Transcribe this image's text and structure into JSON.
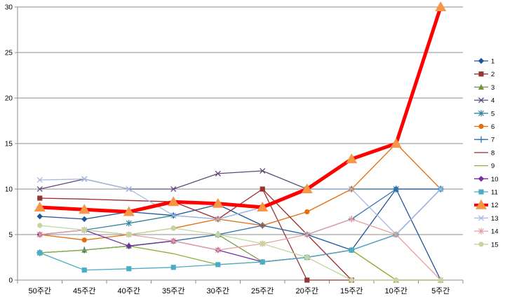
{
  "chart_data": {
    "type": "line",
    "categories": [
      "50주간",
      "45주간",
      "40주간",
      "35주간",
      "30주간",
      "25주간",
      "20주간",
      "15주간",
      "10주간",
      "5주간"
    ],
    "ylim": [
      0,
      30
    ],
    "yticks": [
      0,
      5,
      10,
      15,
      20,
      25,
      30
    ],
    "grid": true,
    "legend_position": "right",
    "series": [
      {
        "name": "1",
        "color": "#1F5597",
        "marker": "diamond",
        "width": 1.3,
        "values": [
          7,
          6.7,
          7.5,
          7.1,
          8.3,
          6,
          5,
          3.3,
          10,
          0
        ]
      },
      {
        "name": "2",
        "color": "#953735",
        "marker": "square",
        "width": 1.3,
        "values": [
          9,
          null,
          null,
          null,
          null,
          10,
          0,
          0,
          null,
          null
        ]
      },
      {
        "name": "3",
        "color": "#77933C",
        "marker": "triangle",
        "width": 1.3,
        "values": [
          3,
          3.3,
          3.75,
          4.3,
          5,
          2,
          2.5,
          3.3,
          0,
          0
        ]
      },
      {
        "name": "4",
        "color": "#5F497A",
        "marker": "x",
        "width": 1.3,
        "values": [
          10,
          11.1,
          10,
          10,
          11.7,
          12,
          10,
          10,
          10,
          10
        ]
      },
      {
        "name": "5",
        "color": "#31859C",
        "marker": "star",
        "width": 1.3,
        "values": [
          5,
          5.5,
          6.25,
          7.1,
          6.7,
          8,
          10,
          10,
          10,
          10
        ]
      },
      {
        "name": "6",
        "color": "#E46C0A",
        "marker": "circle",
        "width": 1.3,
        "values": [
          5,
          4.4,
          5,
          5.7,
          6.7,
          6,
          7.5,
          10,
          15,
          10
        ]
      },
      {
        "name": "7",
        "color": "#2C6FB5",
        "marker": "plus",
        "width": 1.3,
        "values": [
          3,
          3.3,
          3.75,
          4.3,
          5,
          6,
          5,
          6.7,
          10,
          10
        ]
      },
      {
        "name": "8",
        "color": "#A0282D",
        "marker": "none",
        "width": 1.3,
        "values": [
          9,
          8.9,
          8.75,
          8.6,
          6.7,
          10,
          5,
          0,
          0,
          0
        ]
      },
      {
        "name": "9",
        "color": "#8DB33D",
        "marker": "none",
        "width": 1.3,
        "values": [
          3,
          3.3,
          3.75,
          2.9,
          1.7,
          2,
          2.5,
          3.3,
          0,
          0
        ]
      },
      {
        "name": "10",
        "color": "#7030A0",
        "marker": "diamond",
        "width": 1.3,
        "values": [
          5,
          5.5,
          3.75,
          4.3,
          3.3,
          2,
          2.5,
          3.3,
          5,
          10
        ]
      },
      {
        "name": "11",
        "color": "#4BACC6",
        "marker": "square",
        "width": 1.3,
        "values": [
          3,
          1.1,
          1.25,
          1.4,
          1.7,
          2,
          2.5,
          3.3,
          5,
          10
        ]
      },
      {
        "name": "12",
        "color": "#FF0000",
        "marker": "triangle-orange",
        "width": 5,
        "values": [
          8,
          7.75,
          7.5,
          8.6,
          8.4,
          8,
          10,
          13.3,
          15,
          30
        ]
      },
      {
        "name": "13",
        "color": "#A6B9E0",
        "marker": "x",
        "width": 1.3,
        "values": [
          11,
          11.1,
          10,
          7.1,
          6.7,
          8,
          10,
          10,
          5,
          10
        ]
      },
      {
        "name": "14",
        "color": "#E6A0A0",
        "marker": "star",
        "width": 1.3,
        "values": [
          5,
          5.5,
          5,
          4.3,
          3.3,
          4,
          5,
          6.7,
          5,
          0
        ]
      },
      {
        "name": "15",
        "color": "#C3D69B",
        "marker": "circle",
        "width": 1.3,
        "values": [
          6,
          5.5,
          5,
          5.7,
          5,
          4,
          2.5,
          0,
          0,
          0
        ]
      }
    ]
  }
}
